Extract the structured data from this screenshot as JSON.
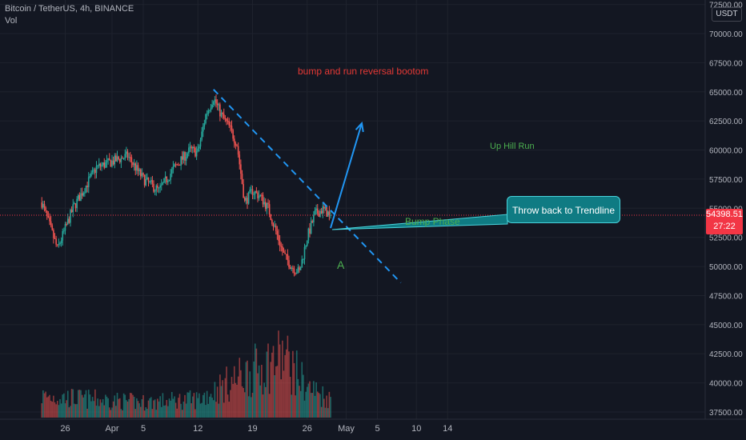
{
  "header": {
    "symbol_line": "Bitcoin / TetherUS, 4h, BINANCE",
    "volume_label": "Vol",
    "currency": "USDT"
  },
  "annotations": {
    "title": "bump and run reversal bootom",
    "label_a": "A",
    "bump_phase": "Bump Phase",
    "uphill_run": "Up Hill Run",
    "callout": "Throw back to Trendline"
  },
  "last_price": {
    "value": "54398.51",
    "countdown": "27:22"
  },
  "colors": {
    "background": "#131722",
    "up": "#26a69a",
    "down": "#ef5350",
    "trendline": "#2196f3",
    "title_text": "#e53935",
    "green_text": "#4caf50",
    "callout_bg": "#0f7b83",
    "price_tag": "#f23645"
  },
  "chart_data": {
    "type": "candlestick",
    "timeframe": "4h",
    "x_tick_labels": [
      "26",
      "Apr",
      "5",
      "12",
      "19",
      "26",
      "May",
      "5",
      "10",
      "14"
    ],
    "y_tick_labels": [
      "72500.00",
      "70000.00",
      "67500.00",
      "65000.00",
      "62500.00",
      "60000.00",
      "57500.00",
      "55000.00",
      "52500.00",
      "50000.00",
      "47500.00",
      "45000.00",
      "42500.00",
      "40000.00",
      "37500.00"
    ],
    "ylim": [
      37000,
      73000
    ],
    "last_price": 54398.51,
    "price_path": [
      {
        "date": "2021-03-23",
        "price": 55500
      },
      {
        "date": "2021-03-25",
        "price": 51500
      },
      {
        "date": "2021-03-27",
        "price": 55000
      },
      {
        "date": "2021-03-30",
        "price": 58500
      },
      {
        "date": "2021-04-01",
        "price": 59000
      },
      {
        "date": "2021-04-03",
        "price": 59500
      },
      {
        "date": "2021-04-05",
        "price": 57500
      },
      {
        "date": "2021-04-07",
        "price": 56500
      },
      {
        "date": "2021-04-09",
        "price": 58500
      },
      {
        "date": "2021-04-11",
        "price": 60000
      },
      {
        "date": "2021-04-12",
        "price": 59800
      },
      {
        "date": "2021-04-13",
        "price": 63000
      },
      {
        "date": "2021-04-14",
        "price": 64500
      },
      {
        "date": "2021-04-15",
        "price": 63000
      },
      {
        "date": "2021-04-16",
        "price": 62000
      },
      {
        "date": "2021-04-17",
        "price": 60500
      },
      {
        "date": "2021-04-18",
        "price": 55500
      },
      {
        "date": "2021-04-19",
        "price": 56500
      },
      {
        "date": "2021-04-20",
        "price": 56000
      },
      {
        "date": "2021-04-21",
        "price": 55000
      },
      {
        "date": "2021-04-22",
        "price": 53000
      },
      {
        "date": "2021-04-23",
        "price": 51000
      },
      {
        "date": "2021-04-24",
        "price": 50000
      },
      {
        "date": "2021-04-25",
        "price": 49500
      },
      {
        "date": "2021-04-26",
        "price": 52500
      },
      {
        "date": "2021-04-27",
        "price": 54500
      },
      {
        "date": "2021-04-28",
        "price": 54900
      },
      {
        "date": "2021-04-29",
        "price": 54398.51
      }
    ],
    "trendline": [
      {
        "date": "2021-04-14",
        "price": 65200
      },
      {
        "date": "2021-05-08",
        "price": 48600
      }
    ],
    "projection_arrow": [
      {
        "date": "2021-04-29",
        "price": 53300
      },
      {
        "date": "2021-05-03",
        "price": 62300
      }
    ],
    "volume_path": [
      {
        "date": "2021-03-23",
        "level": 0.35
      },
      {
        "date": "2021-04-05",
        "level": 0.25
      },
      {
        "date": "2021-04-12",
        "level": 0.3
      },
      {
        "date": "2021-04-18",
        "level": 0.7
      },
      {
        "date": "2021-04-23",
        "level": 1.0
      },
      {
        "date": "2021-04-26",
        "level": 0.5
      },
      {
        "date": "2021-04-29",
        "level": 0.3
      }
    ]
  }
}
